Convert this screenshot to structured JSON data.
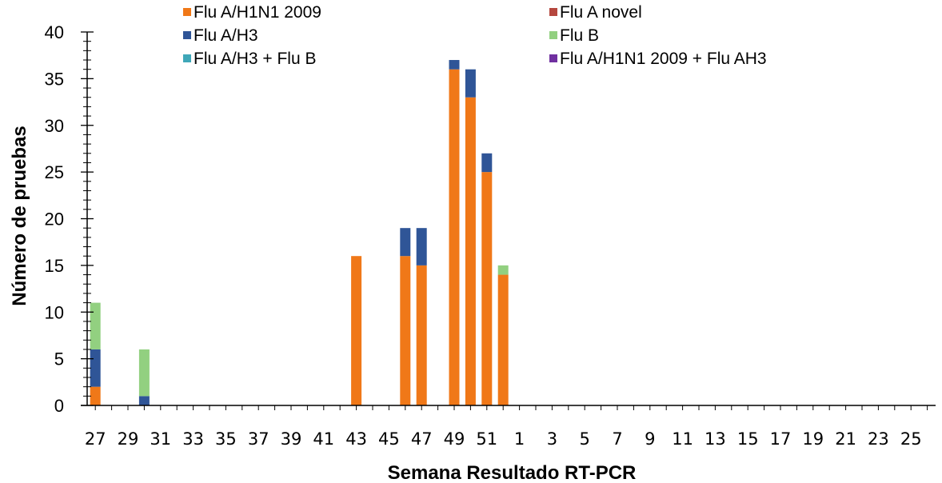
{
  "chart_data": {
    "type": "bar",
    "stacked": true,
    "xlabel": "Semana Resultado RT-PCR",
    "ylabel": "Número de pruebas",
    "ylim": [
      0,
      40
    ],
    "yticks": [
      0,
      5,
      10,
      15,
      20,
      25,
      30,
      35,
      40
    ],
    "grid": false,
    "legend_position": "top",
    "categories": [
      27,
      28,
      29,
      30,
      31,
      32,
      33,
      34,
      35,
      36,
      37,
      38,
      39,
      40,
      41,
      42,
      43,
      44,
      45,
      46,
      47,
      48,
      49,
      50,
      51,
      52,
      1,
      2,
      3,
      4,
      5,
      6,
      7,
      8,
      9,
      10,
      11,
      12,
      13,
      14,
      15,
      16,
      17,
      18,
      19,
      20,
      21,
      22,
      23,
      24,
      25,
      26
    ],
    "tick_labels": [
      "27",
      "29",
      "31",
      "33",
      "35",
      "37",
      "39",
      "41",
      "43",
      "45",
      "47",
      "49",
      "51",
      "1",
      "3",
      "5",
      "7",
      "9",
      "11",
      "13",
      "15",
      "17",
      "19",
      "21",
      "23",
      "25"
    ],
    "series": [
      {
        "name": "Flu A/H1N1 2009",
        "color": "#F07818",
        "values": [
          2,
          0,
          0,
          0,
          0,
          0,
          0,
          0,
          0,
          0,
          0,
          0,
          0,
          0,
          0,
          0,
          16,
          0,
          0,
          16,
          15,
          0,
          36,
          33,
          25,
          14,
          0,
          0,
          0,
          0,
          0,
          0,
          0,
          0,
          0,
          0,
          0,
          0,
          0,
          0,
          0,
          0,
          0,
          0,
          0,
          0,
          0,
          0,
          0,
          0,
          0,
          0
        ]
      },
      {
        "name": "Flu A novel",
        "color": "#B5473E",
        "values": [
          0,
          0,
          0,
          0,
          0,
          0,
          0,
          0,
          0,
          0,
          0,
          0,
          0,
          0,
          0,
          0,
          0,
          0,
          0,
          0,
          0,
          0,
          0,
          0,
          0,
          0,
          0,
          0,
          0,
          0,
          0,
          0,
          0,
          0,
          0,
          0,
          0,
          0,
          0,
          0,
          0,
          0,
          0,
          0,
          0,
          0,
          0,
          0,
          0,
          0,
          0,
          0
        ]
      },
      {
        "name": "Flu A/H3",
        "color": "#2F5597",
        "values": [
          4,
          0,
          0,
          1,
          0,
          0,
          0,
          0,
          0,
          0,
          0,
          0,
          0,
          0,
          0,
          0,
          0,
          0,
          0,
          3,
          4,
          0,
          1,
          3,
          2,
          0,
          0,
          0,
          0,
          0,
          0,
          0,
          0,
          0,
          0,
          0,
          0,
          0,
          0,
          0,
          0,
          0,
          0,
          0,
          0,
          0,
          0,
          0,
          0,
          0,
          0,
          0
        ]
      },
      {
        "name": "Flu B",
        "color": "#92D080",
        "values": [
          5,
          0,
          0,
          5,
          0,
          0,
          0,
          0,
          0,
          0,
          0,
          0,
          0,
          0,
          0,
          0,
          0,
          0,
          0,
          0,
          0,
          0,
          0,
          0,
          0,
          1,
          0,
          0,
          0,
          0,
          0,
          0,
          0,
          0,
          0,
          0,
          0,
          0,
          0,
          0,
          0,
          0,
          0,
          0,
          0,
          0,
          0,
          0,
          0,
          0,
          0,
          0
        ]
      },
      {
        "name": "Flu A/H3 + Flu B",
        "color": "#3FA7B8",
        "values": [
          0,
          0,
          0,
          0,
          0,
          0,
          0,
          0,
          0,
          0,
          0,
          0,
          0,
          0,
          0,
          0,
          0,
          0,
          0,
          0,
          0,
          0,
          0,
          0,
          0,
          0,
          0,
          0,
          0,
          0,
          0,
          0,
          0,
          0,
          0,
          0,
          0,
          0,
          0,
          0,
          0,
          0,
          0,
          0,
          0,
          0,
          0,
          0,
          0,
          0,
          0,
          0
        ]
      },
      {
        "name": "Flu A/H1N1 2009 + Flu AH3",
        "color": "#7030A0",
        "values": [
          0,
          0,
          0,
          0,
          0,
          0,
          0,
          0,
          0,
          0,
          0,
          0,
          0,
          0,
          0,
          0,
          0,
          0,
          0,
          0,
          0,
          0,
          0,
          0,
          0,
          0,
          0,
          0,
          0,
          0,
          0,
          0,
          0,
          0,
          0,
          0,
          0,
          0,
          0,
          0,
          0,
          0,
          0,
          0,
          0,
          0,
          0,
          0,
          0,
          0,
          0,
          0
        ]
      }
    ]
  }
}
